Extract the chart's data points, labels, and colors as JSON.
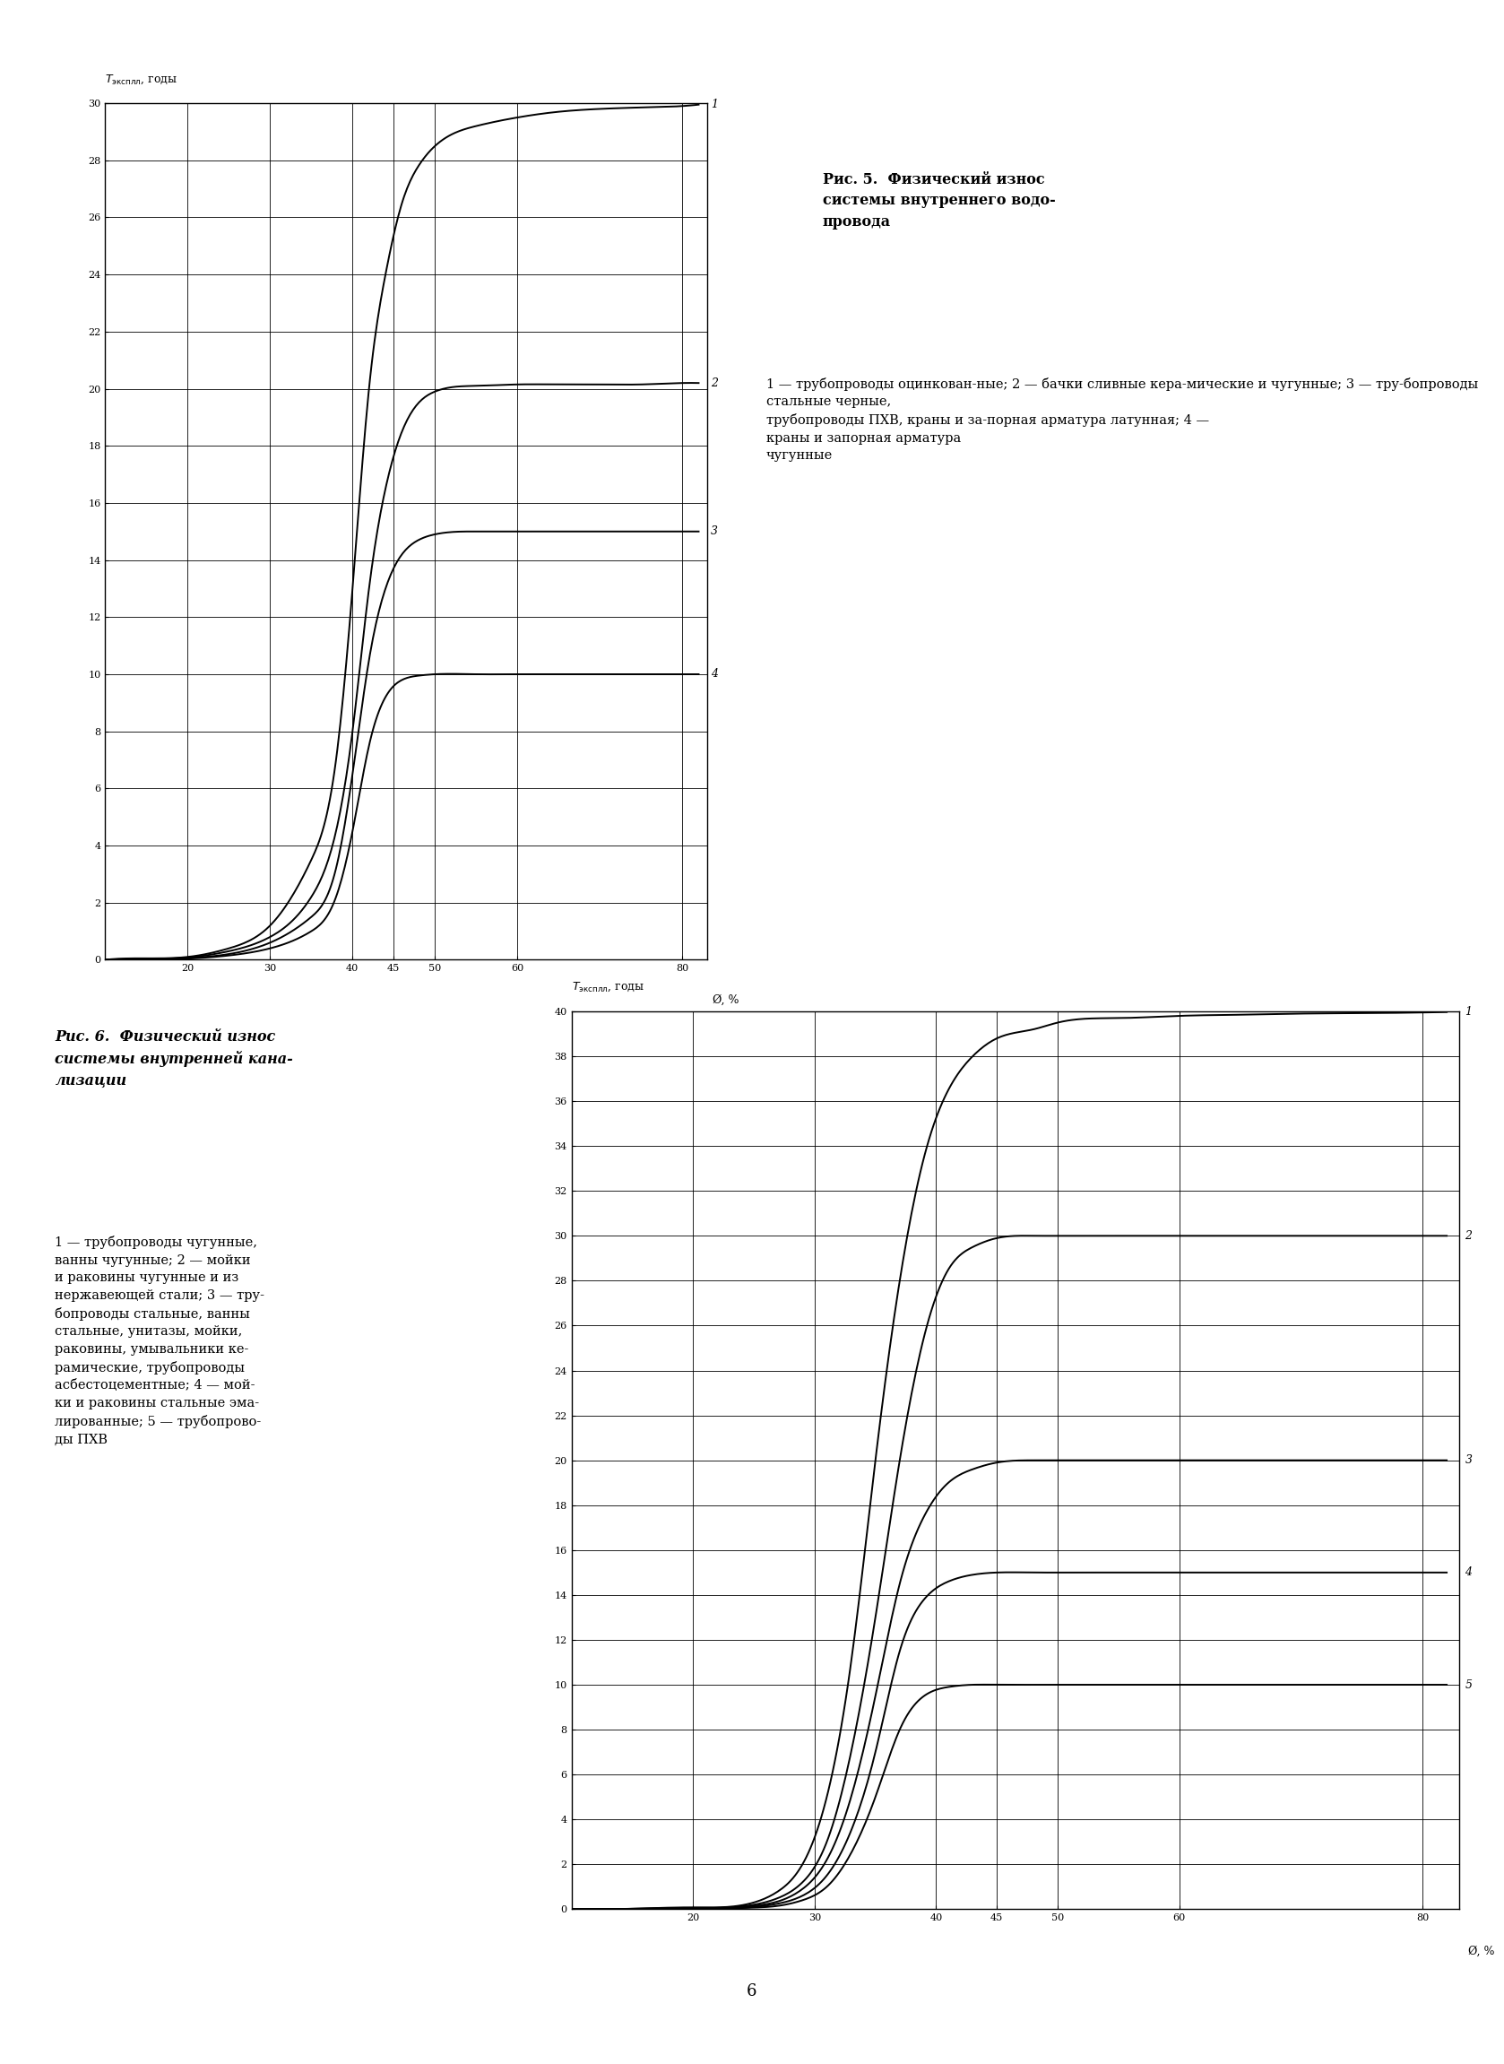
{
  "fig_width": 16.78,
  "fig_height": 23.02,
  "background_color": "#ffffff",
  "chart1": {
    "ylim": [
      0,
      30
    ],
    "xlim": [
      10,
      83
    ],
    "yticks": [
      0,
      2,
      4,
      6,
      8,
      10,
      12,
      14,
      16,
      18,
      20,
      22,
      24,
      26,
      28,
      30
    ],
    "xticks": [
      20,
      30,
      40,
      45,
      50,
      60,
      80
    ],
    "curves": [
      {
        "label": "1",
        "x": [
          10,
          15,
          20,
          25,
          30,
          35,
          38,
          40,
          42,
          44,
          46,
          48,
          50,
          55,
          60,
          65,
          70,
          75,
          80,
          82
        ],
        "y": [
          0,
          0.05,
          0.1,
          0.4,
          1.2,
          3.5,
          7.0,
          13.0,
          20.0,
          24.0,
          26.5,
          27.8,
          28.5,
          29.2,
          29.5,
          29.7,
          29.8,
          29.85,
          29.9,
          29.95
        ]
      },
      {
        "label": "2",
        "x": [
          10,
          15,
          20,
          25,
          30,
          35,
          38,
          40,
          42,
          44,
          46,
          48,
          50,
          55,
          60,
          65,
          70,
          75,
          80,
          82
        ],
        "y": [
          0,
          0.03,
          0.08,
          0.3,
          0.8,
          2.2,
          4.5,
          8.0,
          13.0,
          16.5,
          18.5,
          19.5,
          19.9,
          20.1,
          20.15,
          20.15,
          20.15,
          20.15,
          20.2,
          20.2
        ]
      },
      {
        "label": "3",
        "x": [
          10,
          15,
          20,
          25,
          30,
          35,
          38,
          40,
          42,
          44,
          46,
          48,
          50,
          55,
          60,
          65,
          70,
          75,
          80,
          82
        ],
        "y": [
          0,
          0.02,
          0.06,
          0.2,
          0.6,
          1.5,
          3.2,
          6.5,
          10.5,
          13.0,
          14.2,
          14.7,
          14.9,
          15.0,
          15.0,
          15.0,
          15.0,
          15.0,
          15.0,
          15.0
        ]
      },
      {
        "label": "4",
        "x": [
          10,
          15,
          20,
          25,
          30,
          35,
          38,
          40,
          42,
          44,
          46,
          48,
          50,
          55,
          60,
          65,
          70,
          75,
          80,
          82
        ],
        "y": [
          0,
          0.01,
          0.04,
          0.15,
          0.4,
          1.0,
          2.2,
          4.5,
          7.5,
          9.2,
          9.8,
          9.95,
          10.0,
          10.0,
          10.0,
          10.0,
          10.0,
          10.0,
          10.0,
          10.0
        ]
      }
    ],
    "caption_title": "Рис. 5.  Физический износ\nсистемы внутреннего водо-\nпровода",
    "caption_body": "1 — трубопроводы оцинкован-ные; 2 — бачки сливные кера-мические и чугунные; 3 — тру-бопроводы стальные черные,\nтрубопроводы ПХВ, краны и за-порная арматура латунная; 4 —\nкраны и запорная арматура\nчугунные"
  },
  "chart2": {
    "ylim": [
      0,
      40
    ],
    "xlim": [
      10,
      83
    ],
    "yticks": [
      0,
      2,
      4,
      6,
      8,
      10,
      12,
      14,
      16,
      18,
      20,
      22,
      24,
      26,
      28,
      30,
      32,
      34,
      36,
      38,
      40
    ],
    "xticks": [
      20,
      30,
      40,
      45,
      50,
      60,
      80
    ],
    "curves": [
      {
        "label": "1",
        "x": [
          10,
          15,
          20,
          25,
          27,
          29,
          31,
          33,
          35,
          37,
          39,
          41,
          43,
          45,
          48,
          50,
          55,
          60,
          65,
          70,
          75,
          80,
          82
        ],
        "y": [
          0,
          0.02,
          0.08,
          0.3,
          0.8,
          2.0,
          5.0,
          11.0,
          20.0,
          28.0,
          33.5,
          36.5,
          38.0,
          38.8,
          39.2,
          39.5,
          39.7,
          39.8,
          39.85,
          39.9,
          39.92,
          39.95,
          39.97
        ]
      },
      {
        "label": "2",
        "x": [
          10,
          15,
          20,
          25,
          27,
          29,
          31,
          33,
          35,
          37,
          39,
          41,
          43,
          45,
          48,
          50,
          55,
          60,
          65,
          70,
          75,
          80,
          82
        ],
        "y": [
          0,
          0.02,
          0.06,
          0.2,
          0.5,
          1.2,
          3.0,
          7.0,
          13.0,
          20.0,
          25.5,
          28.5,
          29.5,
          29.9,
          30.0,
          30.0,
          30.0,
          30.0,
          30.0,
          30.0,
          30.0,
          30.0,
          30.0
        ]
      },
      {
        "label": "3",
        "x": [
          10,
          15,
          20,
          25,
          27,
          29,
          31,
          33,
          35,
          37,
          39,
          41,
          43,
          45,
          48,
          50,
          55,
          60,
          65,
          70,
          75,
          80,
          82
        ],
        "y": [
          0,
          0.01,
          0.04,
          0.15,
          0.35,
          0.9,
          2.2,
          5.0,
          9.5,
          14.5,
          17.5,
          19.0,
          19.6,
          19.9,
          20.0,
          20.0,
          20.0,
          20.0,
          20.0,
          20.0,
          20.0,
          20.0,
          20.0
        ]
      },
      {
        "label": "4",
        "x": [
          10,
          15,
          20,
          25,
          27,
          29,
          31,
          33,
          35,
          37,
          39,
          41,
          43,
          45,
          48,
          50,
          55,
          60,
          65,
          70,
          75,
          80,
          82
        ],
        "y": [
          0,
          0.01,
          0.03,
          0.1,
          0.25,
          0.6,
          1.5,
          3.5,
          7.0,
          11.5,
          13.8,
          14.6,
          14.9,
          15.0,
          15.0,
          15.0,
          15.0,
          15.0,
          15.0,
          15.0,
          15.0,
          15.0,
          15.0
        ]
      },
      {
        "label": "5",
        "x": [
          10,
          15,
          20,
          25,
          27,
          29,
          31,
          33,
          35,
          37,
          39,
          41,
          43,
          45,
          48,
          50,
          55,
          60,
          65,
          70,
          75,
          80,
          82
        ],
        "y": [
          0,
          0.01,
          0.02,
          0.07,
          0.15,
          0.4,
          1.0,
          2.5,
          5.0,
          8.0,
          9.5,
          9.9,
          10.0,
          10.0,
          10.0,
          10.0,
          10.0,
          10.0,
          10.0,
          10.0,
          10.0,
          10.0,
          10.0
        ]
      }
    ],
    "caption_title": "Рис. 6.  Физический износ\nсистемы внутренней кана-\nлизации",
    "caption_body": "1 — трубопроводы чугунные,\nванны чугунные; 2 — мойки\nи раковины чугунные и из\nнержавеющей стали; 3 — тру-\nбопроводы стальные, ванны\nстальные, унитазы, мойки,\nраковины, умывальники ке-\nрамические, трубопроводы\nасбестоцементные; 4 — мой-\nки и раковины стальные эма-\nлированные; 5 — трубопрово-\nды ПХВ"
  },
  "page_number": "6"
}
